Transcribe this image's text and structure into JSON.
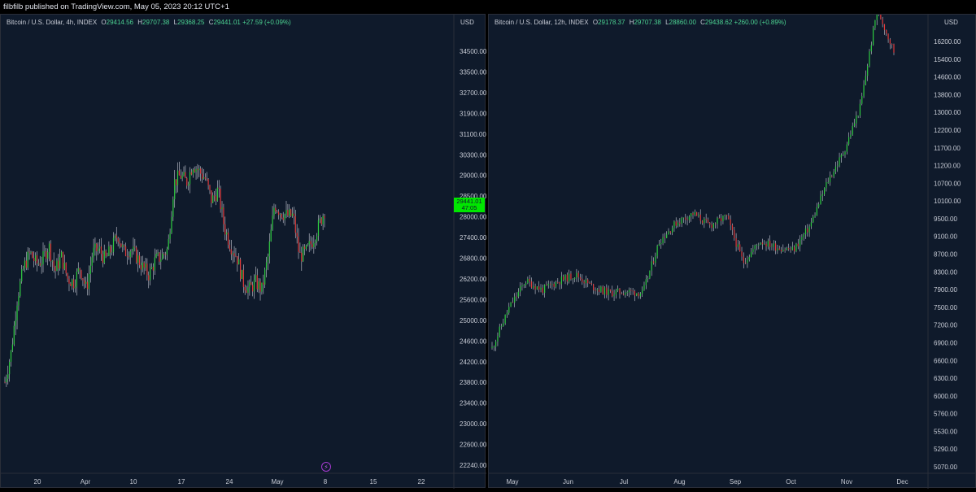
{
  "header": {
    "published": "filbfilb published on TradingView.com, May 05, 2023 20:12 UTC+1"
  },
  "colors": {
    "background": "#0f1a2b",
    "up": "#2ecc40",
    "down": "#e23a3a",
    "wick": "#c8ccd6",
    "last_price_bg": "#00e600",
    "event_icon": "#a63ad1"
  },
  "icons": [
    "lightning-icon"
  ],
  "chart_data": [
    {
      "type": "candlestick",
      "title": "Bitcoin / U.S. Dollar, 4h, INDEX",
      "ohlc_legend": {
        "o_label": "O",
        "o": "29414.56",
        "h_label": "H",
        "h": "29707.38",
        "l_label": "L",
        "l": "29368.25",
        "c_label": "C",
        "c": "29441.01",
        "change": "+27.59 (+0.09%)"
      },
      "currency": "USD",
      "last_price": "29441.01",
      "countdown": "47:05",
      "y_ticks": [
        "34500.00",
        "33500.00",
        "32700.00",
        "31900.00",
        "31100.00",
        "30300.00",
        "29000.00",
        "28500.00",
        "28000.00",
        "27400.00",
        "26800.00",
        "26200.00",
        "25600.00",
        "25000.00",
        "24600.00",
        "24200.00",
        "23800.00",
        "23400.00",
        "23000.00",
        "22600.00",
        "22240.00"
      ],
      "x_ticks": [
        "20",
        "Apr",
        "10",
        "17",
        "24",
        "May",
        "8",
        "15",
        "22"
      ],
      "price_path": [
        [
          "Mar 15",
          24800
        ],
        [
          "Mar 16",
          25600
        ],
        [
          "Mar 17",
          27100
        ],
        [
          "Mar 18",
          27900
        ],
        [
          "Mar 19",
          28300
        ],
        [
          "Mar 20",
          28000
        ],
        [
          "Mar 21",
          28100
        ],
        [
          "Mar 22",
          28500
        ],
        [
          "Mar 23",
          27800
        ],
        [
          "Mar 24",
          28200
        ],
        [
          "Mar 25",
          27600
        ],
        [
          "Mar 26",
          27500
        ],
        [
          "Mar 27",
          27900
        ],
        [
          "Mar 28",
          27300
        ],
        [
          "Mar 29",
          28300
        ],
        [
          "Mar 30",
          28400
        ],
        [
          "Mar 31",
          28100
        ],
        [
          "Apr 1",
          28400
        ],
        [
          "Apr 2",
          28800
        ],
        [
          "Apr 3",
          28300
        ],
        [
          "Apr 4",
          28400
        ],
        [
          "Apr 5",
          28200
        ],
        [
          "Apr 6",
          27900
        ],
        [
          "Apr 7",
          27700
        ],
        [
          "Apr 8",
          28100
        ],
        [
          "Apr 9",
          28200
        ],
        [
          "Apr 10",
          28400
        ],
        [
          "Apr 11",
          30200
        ],
        [
          "Apr 12",
          30400
        ],
        [
          "Apr 13",
          30200
        ],
        [
          "Apr 14",
          30700
        ],
        [
          "Apr 15",
          30500
        ],
        [
          "Apr 16",
          30300
        ],
        [
          "Apr 17",
          29700
        ],
        [
          "Apr 18",
          30000
        ],
        [
          "Apr 19",
          29000
        ],
        [
          "Apr 20",
          28500
        ],
        [
          "Apr 21",
          28200
        ],
        [
          "Apr 22",
          27500
        ],
        [
          "Apr 23",
          27300
        ],
        [
          "Apr 24",
          27500
        ],
        [
          "Apr 25",
          27300
        ],
        [
          "Apr 26",
          28200
        ],
        [
          "Apr 27",
          29600
        ],
        [
          "Apr 28",
          29400
        ],
        [
          "Apr 29",
          29300
        ],
        [
          "Apr 30",
          29300
        ],
        [
          "May 1",
          28200
        ],
        [
          "May 2",
          28300
        ],
        [
          "May 3",
          28600
        ],
        [
          "May 4",
          29000
        ],
        [
          "May 5",
          29441
        ]
      ]
    },
    {
      "type": "candlestick",
      "title": "Bitcoin / U.S. Dollar, 12h, INDEX",
      "ohlc_legend": {
        "o_label": "O",
        "o": "29178.37",
        "h_label": "H",
        "h": "29707.38",
        "l_label": "L",
        "l": "28860.00",
        "c_label": "C",
        "c": "29438.62",
        "change": "+260.00 (+0.89%)"
      },
      "currency": "USD",
      "y_ticks": [
        "16200.00",
        "15400.00",
        "14600.00",
        "13800.00",
        "13000.00",
        "12200.00",
        "11700.00",
        "11200.00",
        "10700.00",
        "10100.00",
        "9500.00",
        "9100.00",
        "8700.00",
        "8300.00",
        "7900.00",
        "7500.00",
        "7200.00",
        "6900.00",
        "6600.00",
        "6300.00",
        "6000.00",
        "5760.00",
        "5530.00",
        "5290.00",
        "5070.00"
      ],
      "x_ticks": [
        "May",
        "Jun",
        "Jul",
        "Aug",
        "Sep",
        "Oct",
        "Nov",
        "Dec"
      ],
      "price_path": [
        [
          "2020-04-25",
          7400
        ],
        [
          "2020-05-01",
          8700
        ],
        [
          "2020-05-10",
          9600
        ],
        [
          "2020-05-20",
          9300
        ],
        [
          "2020-06-01",
          9600
        ],
        [
          "2020-06-10",
          9800
        ],
        [
          "2020-06-20",
          9400
        ],
        [
          "2020-07-01",
          9200
        ],
        [
          "2020-07-10",
          9250
        ],
        [
          "2020-07-20",
          9200
        ],
        [
          "2020-07-27",
          10900
        ],
        [
          "2020-08-05",
          11500
        ],
        [
          "2020-08-15",
          11800
        ],
        [
          "2020-08-25",
          11400
        ],
        [
          "2020-09-01",
          11700
        ],
        [
          "2020-09-05",
          10200
        ],
        [
          "2020-09-15",
          10900
        ],
        [
          "2020-09-25",
          10700
        ],
        [
          "2020-10-05",
          10600
        ],
        [
          "2020-10-15",
          11400
        ],
        [
          "2020-10-21",
          12800
        ],
        [
          "2020-11-01",
          13800
        ],
        [
          "2020-11-10",
          15300
        ],
        [
          "2020-11-20",
          18500
        ],
        [
          "2020-11-26",
          17100
        ]
      ]
    }
  ]
}
